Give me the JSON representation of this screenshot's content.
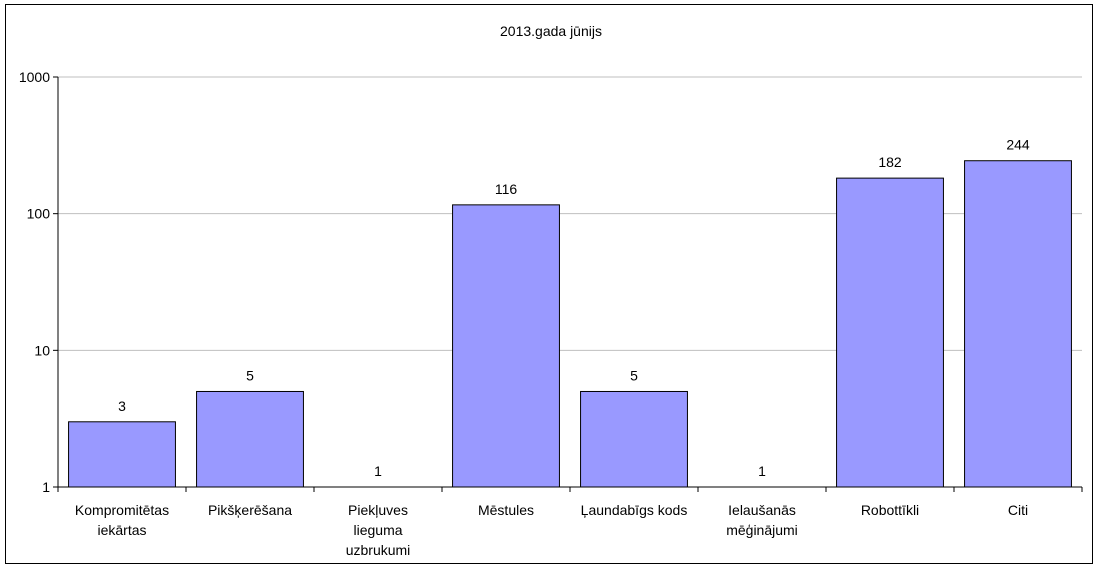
{
  "chart_data": {
    "type": "bar",
    "title": "2013.gada jūnijs",
    "xlabel": "",
    "ylabel": "",
    "yscale": "log",
    "ylim": [
      1,
      1000
    ],
    "yticks": [
      "1",
      "10",
      "100",
      "1000"
    ],
    "categories": [
      "Kompromitētas iekārtas",
      "Pikšķerēšana",
      "Piekļuves lieguma uzbrukumi",
      "Mēstules",
      "Ļaundabīgs kods",
      "Ielaušanās mēģinājumi",
      "Robottīkli",
      "Citi"
    ],
    "category_lines": [
      [
        "Kompromitētas",
        "iekārtas"
      ],
      [
        "Pikšķerēšana"
      ],
      [
        "Piekļuves",
        "lieguma",
        "uzbrukumi"
      ],
      [
        "Mēstules"
      ],
      [
        "Ļaundabīgs kods"
      ],
      [
        "Ielaušanās",
        "mēģinājumi"
      ],
      [
        "Robottīkli"
      ],
      [
        "Citi"
      ]
    ],
    "values": [
      3,
      5,
      1,
      116,
      5,
      1,
      182,
      244
    ],
    "data_labels": [
      "3",
      "5",
      "1",
      "116",
      "5",
      "1",
      "182",
      "244"
    ],
    "grid": true,
    "legend": "none",
    "colors": {
      "bar_fill": "#9999ff",
      "bar_stroke": "#000000",
      "grid": "#bfbfbf",
      "axis": "#000000"
    }
  }
}
